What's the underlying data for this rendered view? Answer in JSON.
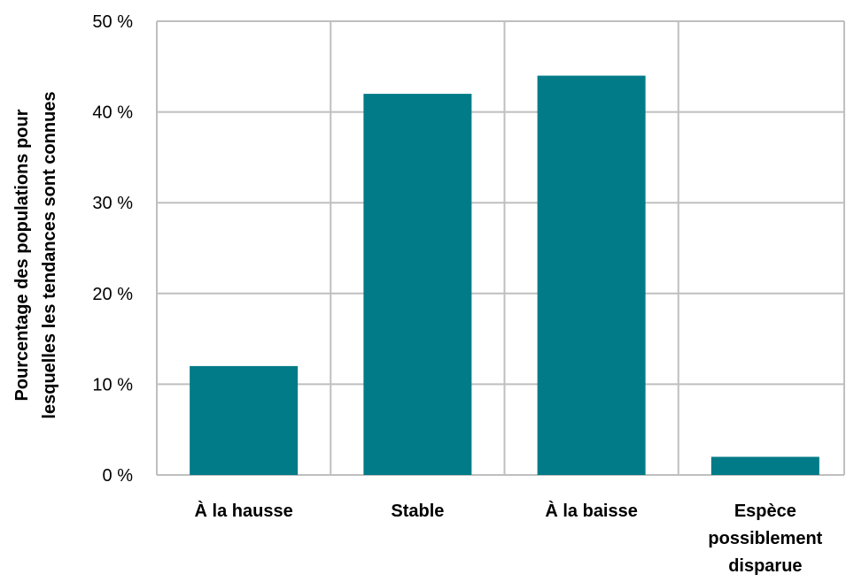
{
  "chart_data": {
    "type": "bar",
    "categories": [
      "À la hausse",
      "Stable",
      "À la baisse",
      "Espèce possiblement disparue"
    ],
    "category_lines": [
      [
        "À la hausse"
      ],
      [
        "Stable"
      ],
      [
        "À la baisse"
      ],
      [
        "Espèce",
        "possiblement",
        "disparue"
      ]
    ],
    "values": [
      12,
      42,
      44,
      2
    ],
    "ylabel": "Pourcentage des populations pour lesquelles les tendances sont connues",
    "ylabel_lines": [
      "Pourcentage des populations pour",
      "lesquelles les tendances sont connues"
    ],
    "ylim": [
      0,
      50
    ],
    "yticks": [
      0,
      10,
      20,
      30,
      40,
      50
    ],
    "ytick_labels": [
      "0 %",
      "10 %",
      "20 %",
      "30 %",
      "40 %",
      "50 %"
    ],
    "grid": true,
    "bar_color": "#007b87",
    "grid_color": "#bfbfbf"
  }
}
